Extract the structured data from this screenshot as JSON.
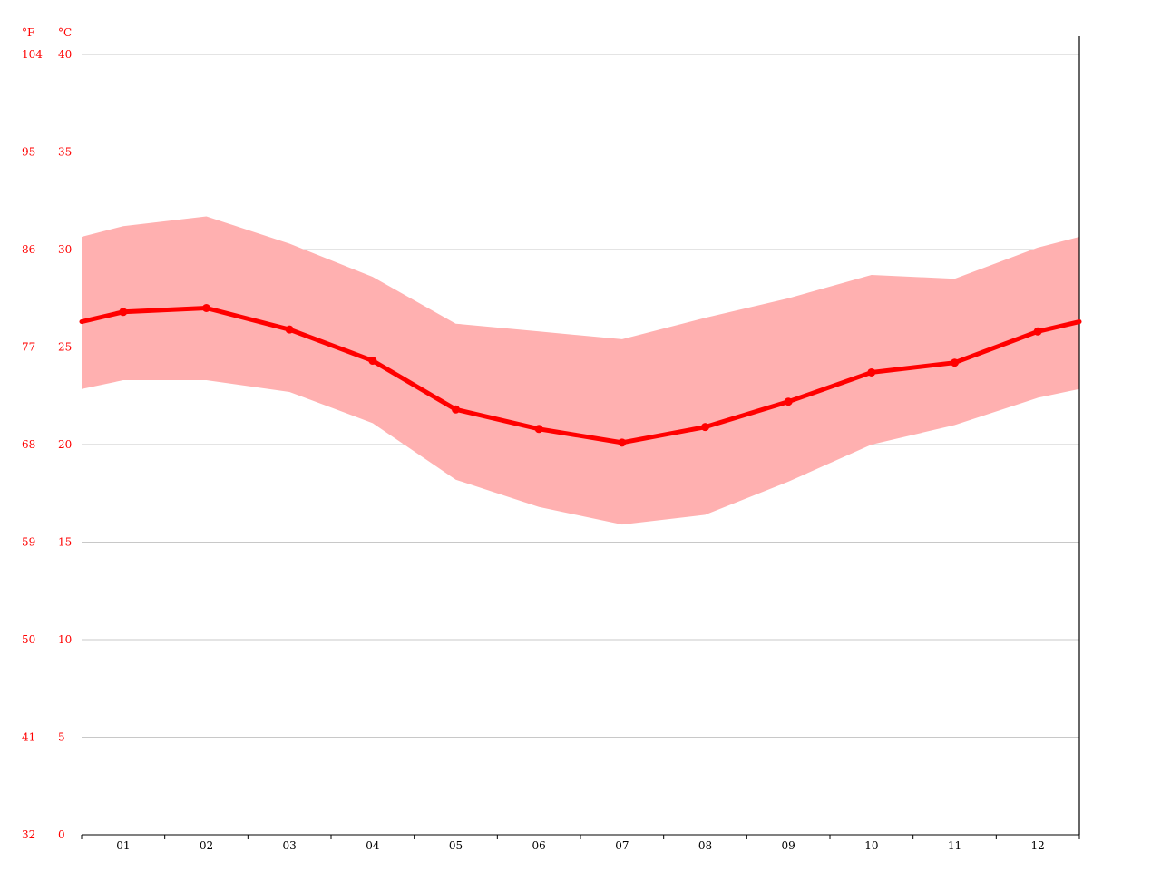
{
  "chart_data": {
    "type": "line",
    "x_axis": {
      "categories": [
        "01",
        "02",
        "03",
        "04",
        "05",
        "06",
        "07",
        "08",
        "09",
        "10",
        "11",
        "12"
      ]
    },
    "y_axis": {
      "unit_fahrenheit": "°F",
      "unit_celsius": "°C",
      "ylim": [
        0,
        40
      ],
      "ticks_c": [
        "0",
        "5",
        "10",
        "15",
        "20",
        "25",
        "30",
        "35",
        "40"
      ],
      "ticks_f": [
        "32",
        "41",
        "50",
        "59",
        "68",
        "77",
        "86",
        "95",
        "104"
      ],
      "grid": true
    },
    "series": [
      {
        "role": "mean",
        "values": [
          26.8,
          27.0,
          25.9,
          24.3,
          21.8,
          20.8,
          20.1,
          20.9,
          22.2,
          23.7,
          24.2,
          25.8
        ]
      },
      {
        "role": "max",
        "values": [
          31.2,
          31.7,
          30.3,
          28.6,
          26.2,
          25.8,
          25.4,
          26.5,
          27.5,
          28.7,
          28.5,
          30.1
        ]
      },
      {
        "role": "min",
        "values": [
          23.3,
          23.3,
          22.7,
          21.1,
          18.2,
          16.8,
          15.9,
          16.4,
          18.1,
          20.0,
          21.0,
          22.4
        ]
      }
    ],
    "colors": {
      "mean_line": "#ff0000",
      "range_band": "#ffb0b0",
      "tick_label_temp": "#ff0000",
      "tick_label_month": "#000000"
    }
  }
}
